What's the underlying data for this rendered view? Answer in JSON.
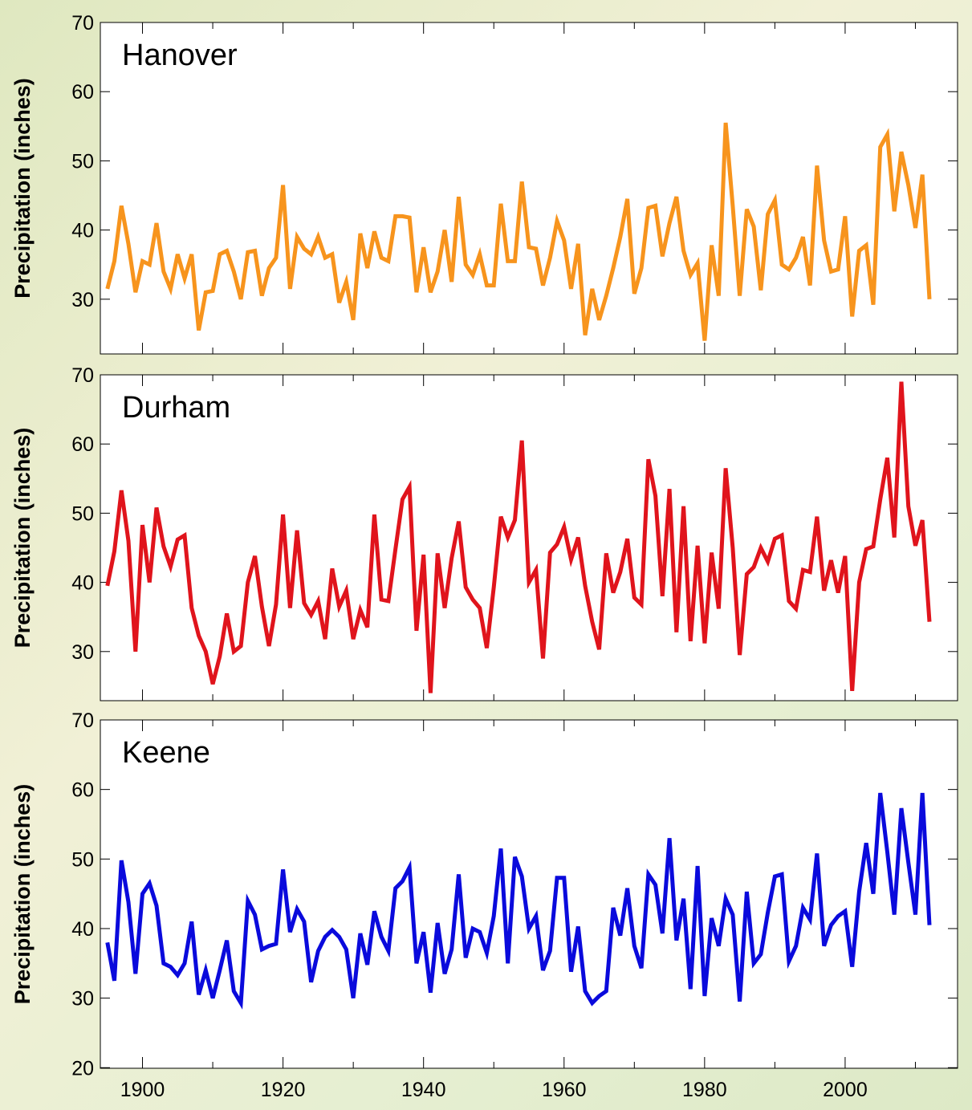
{
  "chart_data": [
    {
      "type": "line",
      "title": "Hanover",
      "ylabel": "Precipitation (inches)",
      "xlim": [
        1894,
        2016
      ],
      "ylim": [
        24,
        70
      ],
      "yticks": [
        30,
        40,
        50,
        60,
        70
      ],
      "xticks": [
        1900,
        1920,
        1940,
        1960,
        1980,
        2000
      ],
      "color": "#f7941d",
      "series": [
        {
          "x": [
            1895,
            1896,
            1897,
            1898,
            1899,
            1900,
            1901,
            1902,
            1903,
            1904,
            1905,
            1906,
            1907,
            1908,
            1909,
            1910,
            1911,
            1912,
            1913,
            1914,
            1915,
            1916,
            1917,
            1918,
            1919,
            1920,
            1921,
            1922,
            1923,
            1924,
            1925,
            1926,
            1927,
            1928,
            1929,
            1930,
            1931,
            1932,
            1933,
            1934,
            1935,
            1936,
            1937,
            1938,
            1939,
            1940,
            1941,
            1942,
            1943,
            1944,
            1945,
            1946,
            1947,
            1948,
            1949,
            1950,
            1951,
            1952,
            1953,
            1954,
            1955,
            1956,
            1957,
            1958,
            1959,
            1960,
            1961,
            1962,
            1963,
            1964,
            1965,
            1966,
            1967,
            1968,
            1969,
            1970,
            1971,
            1972,
            1973,
            1974,
            1975,
            1976,
            1977,
            1978,
            1979,
            1980,
            1981,
            1982,
            1983,
            1984,
            1985,
            1986,
            1987,
            1988,
            1989,
            1990,
            1991,
            1992,
            1993,
            1994,
            1995,
            1996,
            1997,
            1998,
            1999,
            2000,
            2001,
            2002,
            2003,
            2004,
            2005,
            2006,
            2007,
            2008,
            2009,
            2010,
            2011,
            2012
          ],
          "values": [
            31.5,
            35.5,
            43.5,
            38,
            31,
            35.5,
            35,
            41,
            34,
            31.5,
            36.5,
            33,
            36.5,
            25.5,
            31,
            31.2,
            36.5,
            37,
            34,
            30,
            36.8,
            37,
            30.5,
            34.5,
            36,
            46.5,
            31.5,
            39,
            37.3,
            36.5,
            39,
            36,
            36.5,
            29.5,
            32.5,
            27,
            39.5,
            34.5,
            39.8,
            36,
            35.5,
            42,
            42,
            41.8,
            31,
            37.5,
            31,
            34,
            40,
            32.5,
            44.8,
            35,
            33.5,
            36.5,
            32,
            32,
            43.8,
            35.5,
            35.5,
            47,
            37.5,
            37.3,
            32,
            36,
            41.3,
            38.5,
            31.5,
            38,
            24.8,
            31.5,
            27,
            30.5,
            34.5,
            39,
            44.5,
            30.8,
            34.5,
            43.2,
            43.5,
            36.2,
            41,
            44.8,
            37,
            33.5,
            35.2,
            24,
            37.8,
            30.5,
            55.5,
            43.5,
            30.5,
            43,
            40.5,
            31.3,
            42.3,
            44.3,
            35,
            34.3,
            36,
            39,
            32,
            49.3,
            38.5,
            34,
            34.3,
            42,
            27.5,
            37,
            37.8,
            29.2,
            52,
            53.8,
            42.7,
            51.3,
            46.5,
            40.3,
            48,
            30
          ]
        }
      ]
    },
    {
      "type": "line",
      "title": "Durham",
      "ylabel": "Precipitation (inches)",
      "xlim": [
        1894,
        2016
      ],
      "ylim": [
        24,
        70
      ],
      "yticks": [
        30,
        40,
        50,
        60,
        70
      ],
      "xticks": [
        1900,
        1920,
        1940,
        1960,
        1980,
        2000
      ],
      "color": "#e0141c",
      "series": [
        {
          "x": [
            1895,
            1896,
            1897,
            1898,
            1899,
            1900,
            1901,
            1902,
            1903,
            1904,
            1905,
            1906,
            1907,
            1908,
            1909,
            1910,
            1911,
            1912,
            1913,
            1914,
            1915,
            1916,
            1917,
            1918,
            1919,
            1920,
            1921,
            1922,
            1923,
            1924,
            1925,
            1926,
            1927,
            1928,
            1929,
            1930,
            1931,
            1932,
            1933,
            1934,
            1935,
            1936,
            1937,
            1938,
            1939,
            1940,
            1941,
            1942,
            1943,
            1944,
            1945,
            1946,
            1947,
            1948,
            1949,
            1950,
            1951,
            1952,
            1953,
            1954,
            1955,
            1956,
            1957,
            1958,
            1959,
            1960,
            1961,
            1962,
            1963,
            1964,
            1965,
            1966,
            1967,
            1968,
            1969,
            1970,
            1971,
            1972,
            1973,
            1974,
            1975,
            1976,
            1977,
            1978,
            1979,
            1980,
            1981,
            1982,
            1983,
            1984,
            1985,
            1986,
            1987,
            1988,
            1989,
            1990,
            1991,
            1992,
            1993,
            1994,
            1995,
            1996,
            1997,
            1998,
            1999,
            2000,
            2001,
            2002,
            2003,
            2004,
            2005,
            2006,
            2007,
            2008,
            2009,
            2010,
            2011,
            2012
          ],
          "values": [
            39.5,
            44.5,
            53.3,
            46,
            30,
            48.3,
            40,
            50.8,
            45.2,
            42.3,
            46.2,
            46.8,
            36.3,
            32.3,
            30,
            25.3,
            29.3,
            35.5,
            30,
            30.8,
            40,
            43.8,
            36.5,
            30.8,
            36.8,
            49.8,
            36.3,
            47.5,
            37,
            35.3,
            37.3,
            31.8,
            42,
            36.5,
            38.8,
            31.8,
            36,
            33.5,
            49.8,
            37.5,
            37.3,
            44.8,
            52,
            53.8,
            33,
            44,
            24,
            44.2,
            36.3,
            43.5,
            48.8,
            39.3,
            37.5,
            36.3,
            30.5,
            39.3,
            49.5,
            46.5,
            49,
            60.5,
            40,
            41.8,
            29,
            44.3,
            45.5,
            48,
            43.3,
            46.5,
            39.5,
            34.3,
            30.3,
            44.2,
            38.5,
            41.5,
            46.3,
            37.8,
            36.8,
            57.8,
            52.5,
            38,
            53.5,
            32.8,
            51,
            31.5,
            45.3,
            31.2,
            44.3,
            36.2,
            56.5,
            45,
            29.5,
            41.2,
            42.2,
            45,
            43,
            46.3,
            46.8,
            37.3,
            36.2,
            41.8,
            41.5,
            49.5,
            38.8,
            43.2,
            38.5,
            43.8,
            24.3,
            40,
            44.8,
            45.2,
            52,
            58,
            46.5,
            69,
            51,
            45.3,
            49,
            34.3
          ]
        }
      ]
    },
    {
      "type": "line",
      "title": "Keene",
      "ylabel": "Precipitation (inches)",
      "xlim": [
        1894,
        2016
      ],
      "ylim": [
        20,
        70
      ],
      "yticks": [
        20,
        30,
        40,
        50,
        60,
        70
      ],
      "xticks": [
        1900,
        1920,
        1940,
        1960,
        1980,
        2000
      ],
      "xtick_labels": [
        "1900",
        "1920",
        "1940",
        "1960",
        "1980",
        "2000"
      ],
      "color": "#0a0adc",
      "series": [
        {
          "x": [
            1895,
            1896,
            1897,
            1898,
            1899,
            1900,
            1901,
            1902,
            1903,
            1904,
            1905,
            1906,
            1907,
            1908,
            1909,
            1910,
            1911,
            1912,
            1913,
            1914,
            1915,
            1916,
            1917,
            1918,
            1919,
            1920,
            1921,
            1922,
            1923,
            1924,
            1925,
            1926,
            1927,
            1928,
            1929,
            1930,
            1931,
            1932,
            1933,
            1934,
            1935,
            1936,
            1937,
            1938,
            1939,
            1940,
            1941,
            1942,
            1943,
            1944,
            1945,
            1946,
            1947,
            1948,
            1949,
            1950,
            1951,
            1952,
            1953,
            1954,
            1955,
            1956,
            1957,
            1958,
            1959,
            1960,
            1961,
            1962,
            1963,
            1964,
            1965,
            1966,
            1967,
            1968,
            1969,
            1970,
            1971,
            1972,
            1973,
            1974,
            1975,
            1976,
            1977,
            1978,
            1979,
            1980,
            1981,
            1982,
            1983,
            1984,
            1985,
            1986,
            1987,
            1988,
            1989,
            1990,
            1991,
            1992,
            1993,
            1994,
            1995,
            1996,
            1997,
            1998,
            1999,
            2000,
            2001,
            2002,
            2003,
            2004,
            2005,
            2006,
            2007,
            2008,
            2009,
            2010,
            2011,
            2012
          ],
          "values": [
            38,
            32.5,
            49.8,
            43.8,
            33.5,
            45,
            46.5,
            43.3,
            35,
            34.5,
            33.3,
            35,
            41,
            30.5,
            34,
            30,
            34,
            38.3,
            31,
            29.3,
            44,
            42,
            37,
            37.5,
            37.8,
            48.5,
            39.5,
            42.8,
            41,
            32.3,
            36.8,
            38.8,
            39.8,
            38.8,
            37,
            30,
            39.3,
            34.8,
            42.5,
            38.8,
            36.8,
            45.8,
            46.8,
            48.8,
            35,
            39.5,
            30.8,
            40.8,
            33.5,
            37,
            47.8,
            35.8,
            40,
            39.5,
            36.5,
            41.8,
            51.5,
            35,
            50.3,
            47.5,
            40,
            41.8,
            34,
            36.8,
            47.3,
            47.3,
            33.8,
            40.3,
            31,
            29.3,
            30.3,
            31,
            43,
            39,
            45.8,
            37.5,
            34.3,
            47.8,
            46.3,
            39.3,
            53,
            38.3,
            44.3,
            31.3,
            49,
            30.3,
            41.5,
            37.5,
            44.3,
            42,
            29.5,
            45.3,
            35,
            36.3,
            42.3,
            47.5,
            47.8,
            35.3,
            37.5,
            43,
            41.3,
            50.8,
            37.5,
            40.5,
            41.8,
            42.5,
            34.5,
            45.3,
            52.3,
            45,
            59.5,
            51,
            42,
            57.3,
            49.5,
            42,
            59.5,
            40.5
          ]
        }
      ]
    }
  ]
}
